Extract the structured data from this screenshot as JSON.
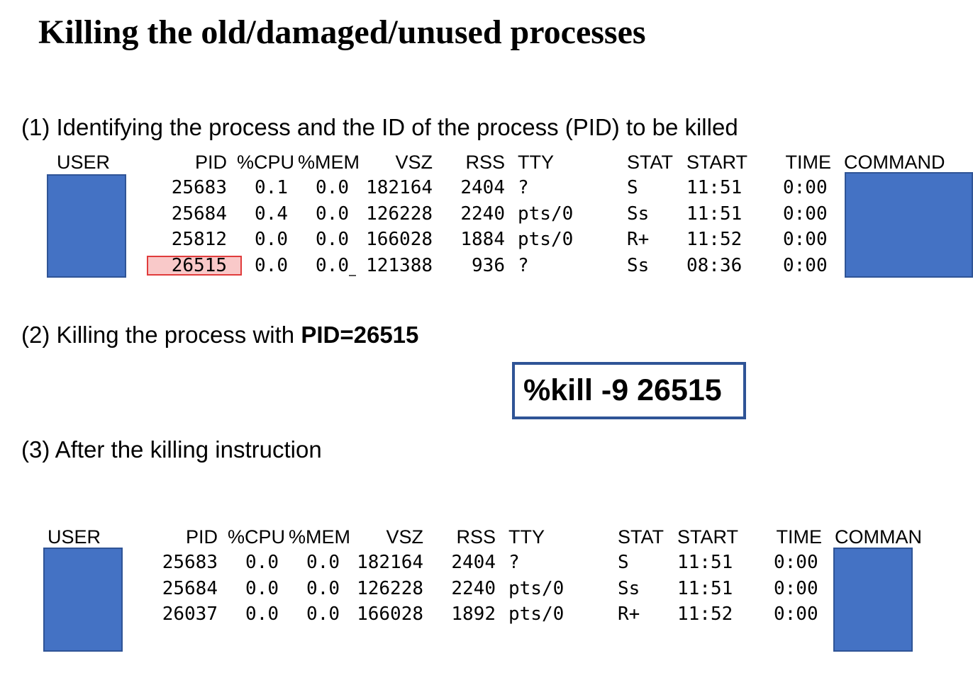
{
  "title": "Killing the old/damaged/unused processes",
  "step1": {
    "label": "(1) Identifying the process and the ID of the process (PID) to be killed"
  },
  "step2": {
    "label_prefix": "(2) Killing the process with ",
    "label_bold": "PID=26515"
  },
  "step3": {
    "label": "(3) After the killing instruction"
  },
  "command": "%kill -9 26515",
  "table1": {
    "headers": [
      "USER",
      "PID",
      "%CPU",
      "%MEM",
      "VSZ",
      "RSS",
      "TTY",
      "STAT",
      "START",
      "TIME",
      "COMMAND"
    ],
    "rows": [
      [
        "25683",
        "0.1",
        "0.0",
        "182164",
        "2404",
        "?",
        "S",
        "11:51",
        "0:00"
      ],
      [
        "25684",
        "0.4",
        "0.0",
        "126228",
        "2240",
        "pts/0",
        "Ss",
        "11:51",
        "0:00"
      ],
      [
        "25812",
        "0.0",
        "0.0",
        "166028",
        "1884",
        "pts/0",
        "R+",
        "11:52",
        "0:00"
      ],
      [
        "26515",
        "0.0",
        "0.0",
        "121388",
        "936",
        "?",
        "Ss",
        "08:36",
        "0:00"
      ]
    ],
    "highlighted_pid": "26515"
  },
  "table2": {
    "headers": [
      "USER",
      "PID",
      "%CPU",
      "%MEM",
      "VSZ",
      "RSS",
      "TTY",
      "STAT",
      "START",
      "TIME",
      "COMMAN"
    ],
    "rows": [
      [
        "25683",
        "0.0",
        "0.0",
        "182164",
        "2404",
        "?",
        "S",
        "11:51",
        "0:00"
      ],
      [
        "25684",
        "0.0",
        "0.0",
        "126228",
        "2240",
        "pts/0",
        "Ss",
        "11:51",
        "0:00"
      ],
      [
        "26037",
        "0.0",
        "0.0",
        "166028",
        "1892",
        "pts/0",
        "R+",
        "11:52",
        "0:00"
      ]
    ]
  },
  "colors": {
    "redaction": "#4472c4",
    "highlight_border": "#e03c3c",
    "highlight_fill": "#f9c9c9",
    "box_border": "#2f5496"
  }
}
